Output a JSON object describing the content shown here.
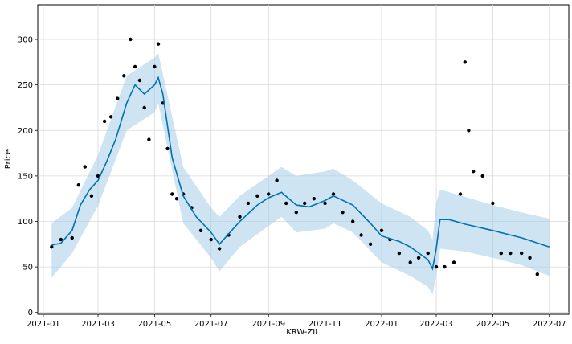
{
  "chart_data": {
    "type": "line",
    "title": "",
    "xlabel": "KRW-ZIL",
    "ylabel": "Price",
    "xlim": [
      "2020-12-26",
      "2022-07-22"
    ],
    "ylim": [
      -2,
      338
    ],
    "grid": true,
    "x_ticks": [
      "2021-01",
      "2021-03",
      "2021-05",
      "2021-07",
      "2021-09",
      "2021-11",
      "2022-01",
      "2022-03",
      "2022-05",
      "2022-07"
    ],
    "y_ticks": [
      0,
      50,
      100,
      150,
      200,
      250,
      300
    ],
    "series": [
      {
        "kind": "observed_points",
        "color": "#000000",
        "x": [
          "2021-01-10",
          "2021-01-20",
          "2021-02-01",
          "2021-02-08",
          "2021-02-15",
          "2021-02-22",
          "2021-03-01",
          "2021-03-08",
          "2021-03-15",
          "2021-03-22",
          "2021-03-29",
          "2021-04-05",
          "2021-04-10",
          "2021-04-15",
          "2021-04-20",
          "2021-04-25",
          "2021-05-01",
          "2021-05-05",
          "2021-05-10",
          "2021-05-15",
          "2021-05-20",
          "2021-05-25",
          "2021-06-01",
          "2021-06-10",
          "2021-06-20",
          "2021-07-01",
          "2021-07-10",
          "2021-07-20",
          "2021-08-01",
          "2021-08-10",
          "2021-08-20",
          "2021-09-01",
          "2021-09-10",
          "2021-09-20",
          "2021-10-01",
          "2021-10-10",
          "2021-10-20",
          "2021-11-01",
          "2021-11-10",
          "2021-11-20",
          "2021-12-01",
          "2021-12-10",
          "2021-12-20",
          "2022-01-01",
          "2022-01-10",
          "2022-01-20",
          "2022-02-01",
          "2022-02-10",
          "2022-02-20",
          "2022-03-01",
          "2022-03-10",
          "2022-03-20",
          "2022-03-27",
          "2022-04-01",
          "2022-04-05",
          "2022-04-10",
          "2022-04-20",
          "2022-05-01",
          "2022-05-10",
          "2022-05-20",
          "2022-06-01",
          "2022-06-10",
          "2022-06-18"
        ],
        "y": [
          72,
          80,
          82,
          140,
          160,
          128,
          150,
          210,
          215,
          235,
          260,
          300,
          270,
          255,
          225,
          190,
          270,
          295,
          230,
          180,
          130,
          125,
          130,
          115,
          90,
          80,
          70,
          85,
          105,
          120,
          128,
          130,
          145,
          120,
          110,
          120,
          125,
          120,
          130,
          110,
          100,
          85,
          75,
          90,
          80,
          65,
          55,
          60,
          65,
          50,
          50,
          55,
          130,
          275,
          200,
          155,
          150,
          120,
          65,
          65,
          65,
          60,
          42
        ]
      },
      {
        "kind": "forecast_yhat",
        "color": "#0072B2",
        "x": [
          "2021-01-10",
          "2021-01-20",
          "2021-02-01",
          "2021-02-10",
          "2021-02-20",
          "2021-03-01",
          "2021-03-10",
          "2021-03-20",
          "2021-04-01",
          "2021-04-10",
          "2021-04-20",
          "2021-05-01",
          "2021-05-05",
          "2021-05-10",
          "2021-05-20",
          "2021-06-01",
          "2021-06-15",
          "2021-07-01",
          "2021-07-10",
          "2021-08-01",
          "2021-08-20",
          "2021-09-01",
          "2021-09-15",
          "2021-10-01",
          "2021-10-15",
          "2021-11-01",
          "2021-11-10",
          "2021-12-01",
          "2021-12-20",
          "2022-01-01",
          "2022-01-20",
          "2022-02-01",
          "2022-02-20",
          "2022-02-25",
          "2022-03-01",
          "2022-03-05",
          "2022-03-15",
          "2022-04-01",
          "2022-05-01",
          "2022-06-01",
          "2022-07-01"
        ],
        "y": [
          74,
          76,
          90,
          118,
          135,
          145,
          165,
          190,
          230,
          250,
          240,
          250,
          258,
          240,
          170,
          128,
          105,
          88,
          75,
          100,
          118,
          126,
          132,
          118,
          116,
          123,
          128,
          118,
          98,
          84,
          78,
          72,
          58,
          48,
          70,
          102,
          102,
          97,
          90,
          82,
          72
        ]
      },
      {
        "kind": "uncertainty_upper",
        "color": "#a6cde8",
        "x": [
          "2021-01-10",
          "2021-02-01",
          "2021-03-01",
          "2021-04-01",
          "2021-05-01",
          "2021-05-05",
          "2021-06-01",
          "2021-07-01",
          "2021-07-10",
          "2021-08-01",
          "2021-09-01",
          "2021-09-15",
          "2021-10-01",
          "2021-11-01",
          "2021-11-10",
          "2021-12-01",
          "2022-01-01",
          "2022-02-01",
          "2022-02-20",
          "2022-02-25",
          "2022-03-01",
          "2022-03-05",
          "2022-04-01",
          "2022-05-01",
          "2022-06-01",
          "2022-07-01"
        ],
        "y": [
          98,
          115,
          173,
          260,
          280,
          285,
          160,
          115,
          105,
          128,
          150,
          160,
          150,
          155,
          158,
          145,
          120,
          105,
          90,
          80,
          120,
          135,
          127,
          118,
          110,
          103
        ]
      },
      {
        "kind": "uncertainty_lower",
        "color": "#a6cde8",
        "x": [
          "2021-01-10",
          "2021-02-01",
          "2021-03-01",
          "2021-04-01",
          "2021-05-01",
          "2021-05-05",
          "2021-06-01",
          "2021-07-01",
          "2021-07-10",
          "2021-08-01",
          "2021-09-01",
          "2021-09-15",
          "2021-10-01",
          "2021-11-01",
          "2021-11-10",
          "2021-12-01",
          "2022-01-01",
          "2022-02-01",
          "2022-02-20",
          "2022-02-25",
          "2022-03-01",
          "2022-03-05",
          "2022-04-01",
          "2022-05-01",
          "2022-06-01",
          "2022-07-01"
        ],
        "y": [
          38,
          65,
          117,
          200,
          220,
          230,
          98,
          60,
          45,
          72,
          95,
          105,
          88,
          92,
          98,
          88,
          55,
          40,
          28,
          20,
          40,
          70,
          67,
          60,
          52,
          40
        ]
      }
    ]
  }
}
